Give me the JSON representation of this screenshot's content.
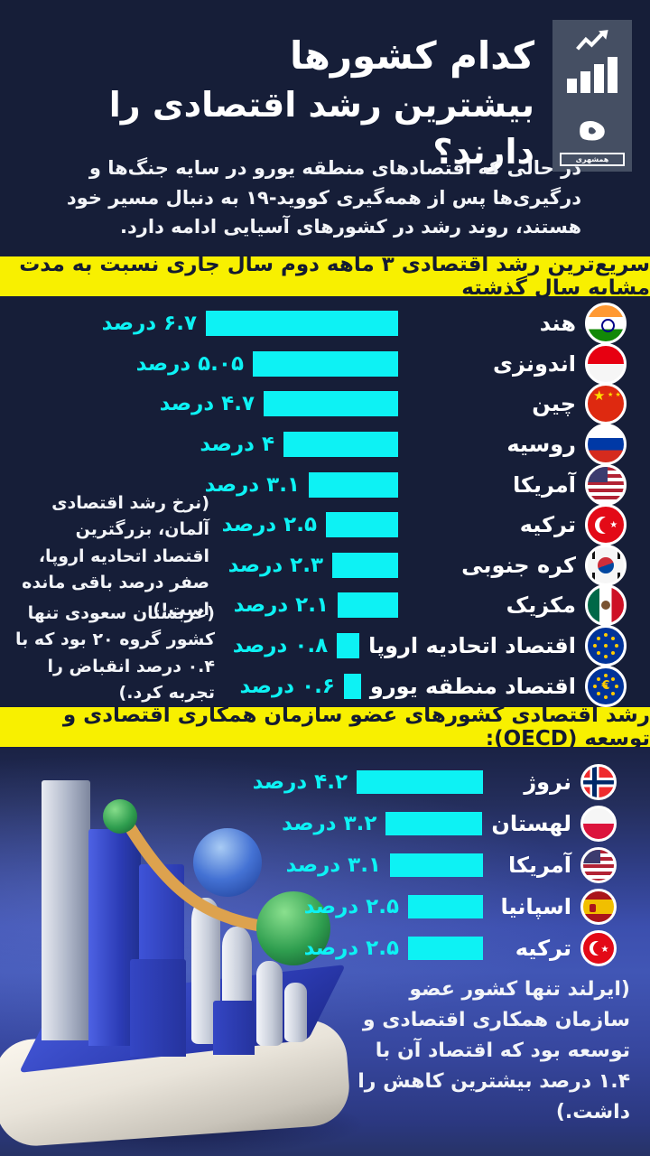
{
  "page": {
    "bg": "#161e38",
    "accent_cyan": "#0df2f4",
    "accent_yellow": "#f8f000"
  },
  "header": {
    "title_line1": "کدام کشورها",
    "title_line2": "بیشترین رشد اقتصادی را دارند؟",
    "subtitle": "در حالی که اقتصادهای منطقه یورو در سایه جنگ‌ها و درگیری‌ها پس از همه‌گیری کووید-۱۹ به دنبال مسیر خود هستند، روند رشد در کشورهای آسیایی ادامه دارد.",
    "logo_glyph": "ه",
    "logo_name": "همشهری"
  },
  "section1": {
    "banner": "سریع‌ترین رشد اقتصادی ۳ ماهه دوم سال جاری نسبت به مدت مشابه سال گذشته",
    "note_germany": "(نرخ رشد اقتصادی آلمان، بزرگترین اقتصاد اتحادیه اروپا، صفر درصد باقی مانده است!)",
    "note_saudi": "(عربستان سعودی تنها کشور گروه ۲۰ بود که با ۰.۴ درصد انقباض را تجربه کرد.)"
  },
  "section2": {
    "banner": "رشد اقتصادی کشورهای عضو سازمان همکاری اقتصادی و توسعه (OECD):",
    "note_ireland": "(ایرلند تنها کشور عضو سازمان همکاری اقتصادی و توسعه بود که اقتصاد آن با ۱.۴ درصد بیشترین کاهش را داشت.)"
  },
  "chart_data": [
    {
      "type": "bar",
      "orientation": "horizontal-rtl",
      "title": "سریع‌ترین رشد اقتصادی ۳ ماهه دوم سال جاری نسبت به مدت مشابه سال گذشته",
      "categories": [
        "هند",
        "اندونزی",
        "چین",
        "روسیه",
        "آمریکا",
        "ترکیه",
        "کره جنوبی",
        "مکزیک",
        "اقتصاد اتحادیه اروپا",
        "اقتصاد منطقه یورو"
      ],
      "values": [
        6.7,
        5.05,
        4.7,
        4,
        3.1,
        2.5,
        2.3,
        2.1,
        0.8,
        0.6
      ],
      "value_labels": [
        "۶.۷ درصد",
        "۵.۰۵ درصد",
        "۴.۷ درصد",
        "۴ درصد",
        "۳.۱ درصد",
        "۲.۵ درصد",
        "۲.۳ درصد",
        "۲.۱ درصد",
        "۰.۸ درصد",
        "۰.۶ درصد"
      ],
      "unit": "درصد",
      "bar_color": "#0df2f4",
      "flags": [
        "india",
        "indonesia",
        "china",
        "russia",
        "usa",
        "turkey",
        "southkorea",
        "mexico",
        "eu",
        "eurozone"
      ],
      "xlim": [
        0,
        7
      ],
      "grid": false,
      "legend": "none"
    },
    {
      "type": "bar",
      "orientation": "horizontal-rtl",
      "title": "رشد اقتصادی کشورهای عضو سازمان همکاری اقتصادی و توسعه (OECD):",
      "categories": [
        "نروژ",
        "لهستان",
        "آمریکا",
        "اسپانیا",
        "ترکیه"
      ],
      "values": [
        4.2,
        3.2,
        3.1,
        2.5,
        2.5
      ],
      "value_labels": [
        "۴.۲ درصد",
        "۳.۲ درصد",
        "۳.۱ درصد",
        "۲.۵ درصد",
        "۲.۵ درصد"
      ],
      "unit": "درصد",
      "bar_color": "#0df2f4",
      "flags": [
        "norway",
        "poland",
        "usa",
        "spain",
        "turkey"
      ],
      "xlim": [
        0,
        5
      ],
      "grid": false,
      "legend": "none"
    }
  ]
}
